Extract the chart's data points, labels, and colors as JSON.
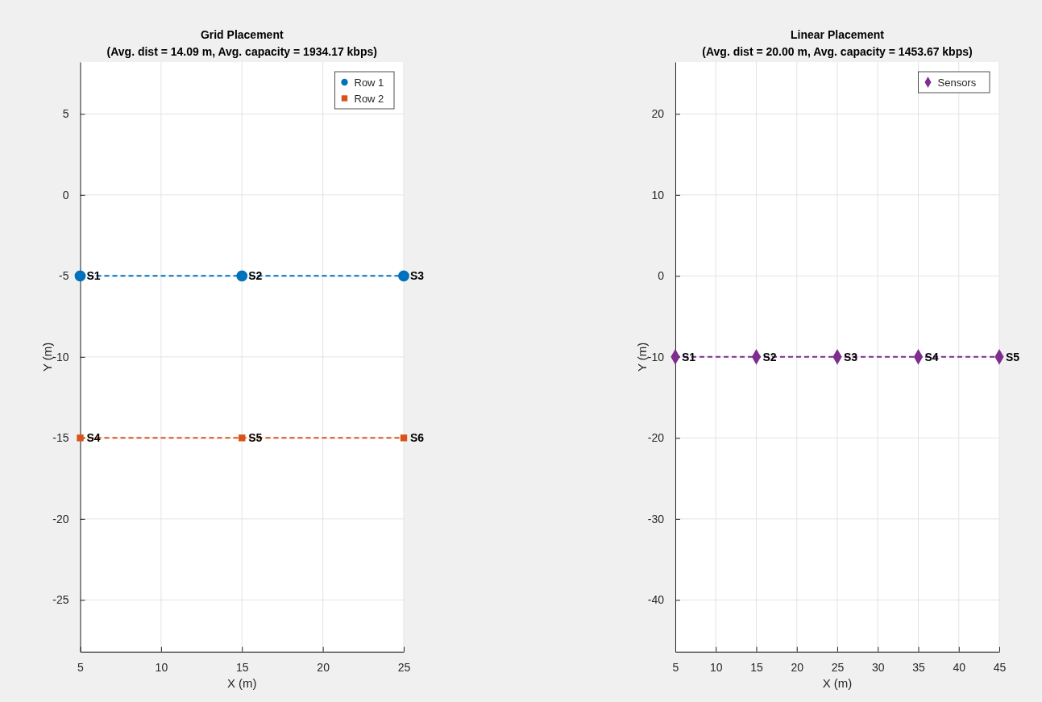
{
  "chart_data": [
    {
      "type": "line",
      "title": "Grid Placement",
      "subtitle": "(Avg. dist = 14.09 m, Avg. capacity = 1934.17 kbps)",
      "xlabel": "X (m)",
      "ylabel": "Y (m)",
      "xlim": [
        5,
        25
      ],
      "xticks": [
        5,
        10,
        15,
        20,
        25
      ],
      "ylim": [
        -28.2,
        8.2
      ],
      "yticks": [
        -25,
        -20,
        -15,
        -10,
        -5,
        0,
        5
      ],
      "grid": true,
      "legend": "top right",
      "line_style": "dashed",
      "series": [
        {
          "name": "Row 1",
          "color": "#0072bd",
          "marker": "circle",
          "x": [
            5,
            15,
            25
          ],
          "values": [
            -5,
            -5,
            -5
          ]
        },
        {
          "name": "Row 2",
          "color": "#d95319",
          "marker": "square",
          "x": [
            5,
            15,
            25
          ],
          "values": [
            -15,
            -15,
            -15
          ]
        }
      ],
      "annotations": [
        {
          "text": "S1",
          "x": 5,
          "y": -5
        },
        {
          "text": "S2",
          "x": 15,
          "y": -5
        },
        {
          "text": "S3",
          "x": 25,
          "y": -5
        },
        {
          "text": "S4",
          "x": 5,
          "y": -15
        },
        {
          "text": "S5",
          "x": 15,
          "y": -15
        },
        {
          "text": "S6",
          "x": 25,
          "y": -15
        }
      ]
    },
    {
      "type": "line",
      "title": "Linear Placement",
      "subtitle": "(Avg. dist = 20.00 m, Avg. capacity = 1453.67 kbps)",
      "xlabel": "X (m)",
      "ylabel": "Y (m)",
      "xlim": [
        5,
        45
      ],
      "xticks": [
        5,
        10,
        15,
        20,
        25,
        30,
        35,
        40,
        45
      ],
      "ylim": [
        -46.4,
        26.4
      ],
      "yticks": [
        -40,
        -30,
        -20,
        -10,
        0,
        10,
        20
      ],
      "grid": true,
      "legend": "top right",
      "line_style": "dashed",
      "series": [
        {
          "name": "Sensors",
          "color": "#7e2f8e",
          "marker": "diamond",
          "x": [
            5,
            15,
            25,
            35,
            45
          ],
          "values": [
            -10,
            -10,
            -10,
            -10,
            -10
          ]
        }
      ],
      "annotations": [
        {
          "text": "S1",
          "x": 5,
          "y": -10
        },
        {
          "text": "S2",
          "x": 15,
          "y": -10
        },
        {
          "text": "S3",
          "x": 25,
          "y": -10
        },
        {
          "text": "S4",
          "x": 35,
          "y": -10
        },
        {
          "text": "S5",
          "x": 45,
          "y": -10
        }
      ]
    }
  ]
}
